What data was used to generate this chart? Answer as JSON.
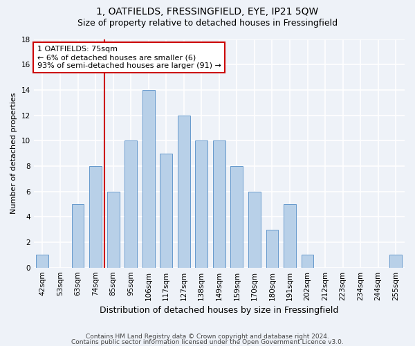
{
  "title1": "1, OATFIELDS, FRESSINGFIELD, EYE, IP21 5QW",
  "title2": "Size of property relative to detached houses in Fressingfield",
  "xlabel": "Distribution of detached houses by size in Fressingfield",
  "ylabel": "Number of detached properties",
  "categories": [
    "42sqm",
    "53sqm",
    "63sqm",
    "74sqm",
    "85sqm",
    "95sqm",
    "106sqm",
    "117sqm",
    "127sqm",
    "138sqm",
    "149sqm",
    "159sqm",
    "170sqm",
    "180sqm",
    "191sqm",
    "202sqm",
    "212sqm",
    "223sqm",
    "234sqm",
    "244sqm",
    "255sqm"
  ],
  "values": [
    1,
    0,
    5,
    8,
    6,
    10,
    14,
    9,
    12,
    10,
    10,
    8,
    6,
    3,
    5,
    1,
    0,
    0,
    0,
    0,
    1
  ],
  "bar_color": "#b8d0e8",
  "bar_edge_color": "#6699cc",
  "bar_width": 0.7,
  "vline_x_index": 3.5,
  "vline_color": "#cc0000",
  "annotation_text": "1 OATFIELDS: 75sqm\n← 6% of detached houses are smaller (6)\n93% of semi-detached houses are larger (91) →",
  "annotation_box_color": "#ffffff",
  "annotation_box_edge": "#cc0000",
  "ylim": [
    0,
    18
  ],
  "yticks": [
    0,
    2,
    4,
    6,
    8,
    10,
    12,
    14,
    16,
    18
  ],
  "footer1": "Contains HM Land Registry data © Crown copyright and database right 2024.",
  "footer2": "Contains public sector information licensed under the Open Government Licence v3.0.",
  "bg_color": "#eef2f8",
  "grid_color": "#ffffff",
  "title_fontsize": 10,
  "subtitle_fontsize": 9,
  "xlabel_fontsize": 9,
  "ylabel_fontsize": 8,
  "tick_fontsize": 7.5,
  "footer_fontsize": 6.5,
  "annotation_fontsize": 8
}
